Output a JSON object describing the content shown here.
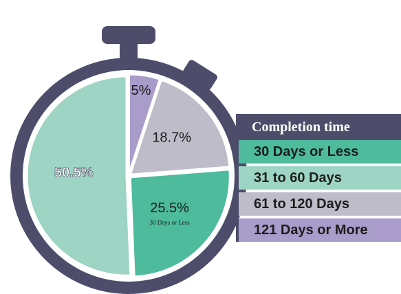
{
  "chart_data": {
    "type": "pie",
    "legend_title": "Completion time",
    "legend_position": "right",
    "slices": [
      {
        "label": "30 Days or Less",
        "value": 25.5,
        "value_label": "25.5%",
        "sublabel": "30 Days or Less",
        "color": "#4dbb9c"
      },
      {
        "label": "31 to 60 Days",
        "value": 50.5,
        "value_label": "50.5%",
        "color": "#9dd4c4"
      },
      {
        "label": "61 to 120 Days",
        "value": 18.7,
        "value_label": "18.7%",
        "color": "#bdbcc8"
      },
      {
        "label": "121 Days or More",
        "value": 5,
        "value_label": "5%",
        "color": "#a99ccb"
      }
    ]
  },
  "theme": {
    "frame_color": "#4d4d6b",
    "background": "#ffffff"
  }
}
